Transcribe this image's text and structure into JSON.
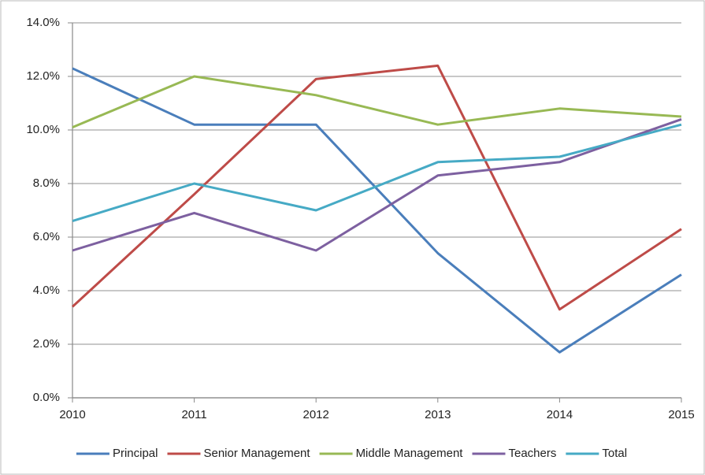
{
  "chart_data": {
    "type": "line",
    "x": [
      2010,
      2011,
      2012,
      2013,
      2014,
      2015
    ],
    "xlim": [
      2010,
      2015
    ],
    "xticks": [
      2010,
      2011,
      2012,
      2013,
      2014,
      2015
    ],
    "ylim": [
      0,
      14
    ],
    "yticks": [
      {
        "value": 0,
        "label": "0.0%"
      },
      {
        "value": 2,
        "label": "2.0%"
      },
      {
        "value": 4,
        "label": "4.0%"
      },
      {
        "value": 6,
        "label": "6.0%"
      },
      {
        "value": 8,
        "label": "8.0%"
      },
      {
        "value": 10,
        "label": "10.0%"
      },
      {
        "value": 12,
        "label": "12.0%"
      },
      {
        "value": 14,
        "label": "14.0%"
      }
    ],
    "grid": true,
    "legend": "bottom",
    "series": [
      {
        "name": "Principal",
        "color": "#4a7ebb",
        "values": [
          12.3,
          10.2,
          10.2,
          5.4,
          1.7,
          4.6
        ]
      },
      {
        "name": "Senior Management",
        "color": "#be4b48",
        "values": [
          3.4,
          7.6,
          11.9,
          12.4,
          3.3,
          6.3
        ]
      },
      {
        "name": "Middle Management",
        "color": "#98b954",
        "values": [
          10.1,
          12.0,
          11.3,
          10.2,
          10.8,
          10.5
        ]
      },
      {
        "name": "Teachers",
        "color": "#7d60a0",
        "values": [
          5.5,
          6.9,
          5.5,
          8.3,
          8.8,
          10.4
        ]
      },
      {
        "name": "Total",
        "color": "#46aac5",
        "values": [
          6.6,
          8.0,
          7.0,
          8.8,
          9.0,
          10.2
        ]
      }
    ]
  }
}
